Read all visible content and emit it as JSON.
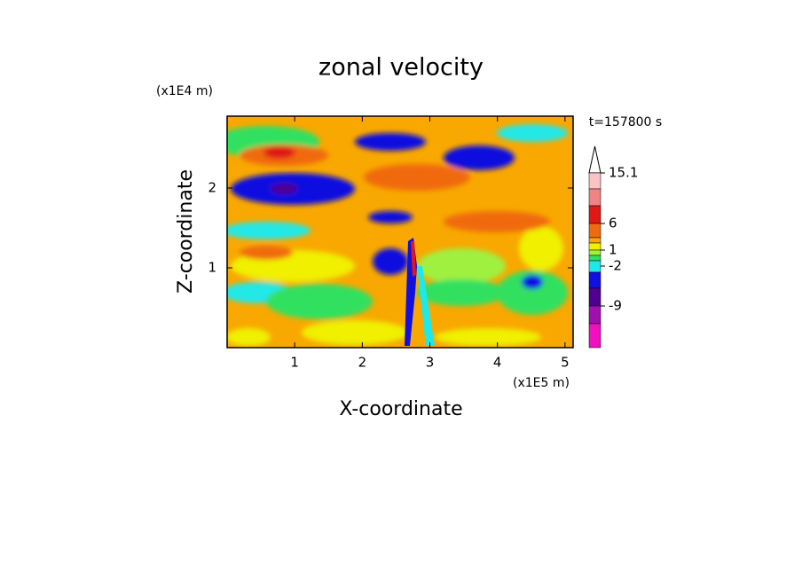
{
  "chart_data": {
    "type": "contour",
    "title": "zonal velocity",
    "x_label": "X-coordinate",
    "y_label": "Z-coordinate",
    "x_unit": "(x1E5 m)",
    "y_unit": "(x1E4 m)",
    "annotation": "t=157800 s",
    "xlim": [
      0,
      5.12
    ],
    "xticks": [
      1,
      2,
      3,
      4,
      5
    ],
    "ylim": [
      0,
      2.9
    ],
    "yticks": [
      1,
      2
    ],
    "colorbar": {
      "colors": [
        "#f8c4c4",
        "#f08484",
        "#e01818",
        "#f06a10",
        "#f8a800",
        "#f0f000",
        "#a0f040",
        "#30e060",
        "#20e8e8",
        "#1010e0",
        "#500090",
        "#a010b0",
        "#f010c0"
      ],
      "ticks": [
        15.1,
        6,
        1,
        -2,
        -9
      ]
    }
  }
}
